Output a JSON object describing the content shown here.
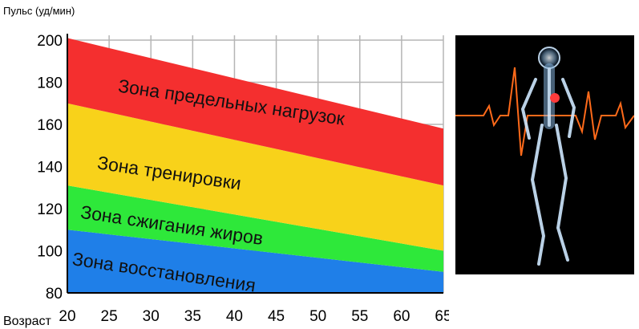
{
  "chart_data": {
    "type": "area",
    "ylabel": "Пульс (уд/мин)",
    "xlabel": "Возраст",
    "x_ticks": [
      20,
      25,
      30,
      35,
      40,
      45,
      50,
      55,
      60,
      65
    ],
    "y_ticks": [
      80,
      100,
      120,
      140,
      160,
      180,
      200
    ],
    "xlim": [
      20,
      65
    ],
    "ylim": [
      80,
      200
    ],
    "grid": true,
    "x": [
      20,
      65
    ],
    "zones": [
      {
        "name": "Зона восстановления",
        "lower": [
          80,
          80
        ],
        "upper": [
          110,
          90
        ],
        "color": "#1f7fe8"
      },
      {
        "name": "Зона сжигания жиров",
        "lower": [
          110,
          90
        ],
        "upper": [
          131,
          100
        ],
        "color": "#2ee83a"
      },
      {
        "name": "Зона тренировки",
        "lower": [
          131,
          100
        ],
        "upper": [
          170,
          131
        ],
        "color": "#f8d21a"
      },
      {
        "name": "Зона предельных нагрузок",
        "lower": [
          170,
          131
        ],
        "upper": [
          201,
          158
        ],
        "color": "#f42f2f"
      }
    ]
  },
  "colors": {
    "grid": "#b5b5b5",
    "axis": "#000000",
    "panel_bg": "#000000",
    "pulse_line": "#ff6a1a",
    "body_glow": "#bfe3ff"
  }
}
